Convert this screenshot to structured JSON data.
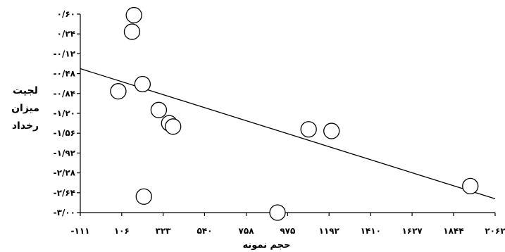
{
  "chart_data": {
    "type": "scatter",
    "title": "",
    "xlabel": "حجم نمونه",
    "ylabel_lines": [
      "لجیت",
      "میزان",
      "رخداد"
    ],
    "xlim": [
      -111,
      2062
    ],
    "ylim": [
      -3.0,
      0.6
    ],
    "x_ticks": [
      -111,
      106,
      323,
      540,
      758,
      975,
      1192,
      1410,
      1627,
      1844,
      2062
    ],
    "x_tick_labels": [
      "-۱۱۱",
      "۱۰۶",
      "۳۲۳",
      "۵۴۰",
      "۷۵۸",
      "۹۷۵",
      "۱۱۹۲",
      "۱۴۱۰",
      "۱۶۲۷",
      "۱۸۴۴",
      "۲۰۶۲"
    ],
    "y_ticks": [
      0.6,
      0.24,
      -0.12,
      -0.48,
      -0.84,
      -1.2,
      -1.56,
      -1.92,
      -2.28,
      -2.64,
      -3.0
    ],
    "y_tick_labels": [
      "۰/۶۰",
      "۰/۲۴",
      "-۰/۱۲",
      "-۰/۴۸",
      "-۰/۸۴",
      "-۱/۲۰",
      "-۱/۵۶",
      "-۱/۹۲",
      "-۲/۲۸",
      "-۲/۶۴",
      "-۳/۰۰"
    ],
    "grid": false,
    "points": [
      {
        "x": 88,
        "y": -0.8
      },
      {
        "x": 160,
        "y": 0.28
      },
      {
        "x": 170,
        "y": 0.58
      },
      {
        "x": 215,
        "y": -0.67
      },
      {
        "x": 222,
        "y": -2.71
      },
      {
        "x": 300,
        "y": -1.14
      },
      {
        "x": 355,
        "y": -1.38
      },
      {
        "x": 375,
        "y": -1.44
      },
      {
        "x": 922,
        "y": -3.0
      },
      {
        "x": 1085,
        "y": -1.49
      },
      {
        "x": 1205,
        "y": -1.52
      },
      {
        "x": 1932,
        "y": -2.52
      }
    ],
    "trendline": {
      "x": [
        -111,
        2062
      ],
      "y": [
        -0.39,
        -2.75
      ]
    }
  }
}
